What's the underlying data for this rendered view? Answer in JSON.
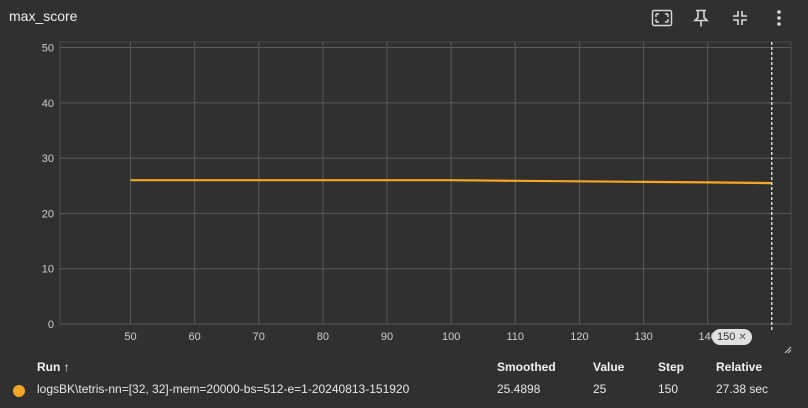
{
  "panel": {
    "title": "max_score"
  },
  "toolbar": {
    "fit_icon": "fit-domain-icon",
    "pin_icon": "pin-icon",
    "collapse_icon": "collapse-icon",
    "menu_icon": "more-vert-icon"
  },
  "chart_data": {
    "type": "line",
    "title": "max_score",
    "xlabel": "",
    "ylabel": "",
    "xlim": [
      39,
      153
    ],
    "ylim": [
      0,
      51
    ],
    "xticks": [
      50,
      60,
      70,
      80,
      90,
      100,
      110,
      120,
      130,
      140
    ],
    "yticks": [
      0,
      10,
      20,
      30,
      40,
      50
    ],
    "grid": true,
    "series": [
      {
        "name": "logsBK\\tetris-nn=[32, 32]-mem=20000-bs=512-e=1-20240813-151920",
        "color": "#f5a623",
        "x": [
          50,
          60,
          70,
          80,
          90,
          100,
          110,
          120,
          130,
          140,
          150
        ],
        "y": [
          26,
          26,
          26,
          26,
          26,
          26,
          25.9,
          25.8,
          25.7,
          25.6,
          25.4898
        ]
      }
    ],
    "hover_step": 150,
    "hover_label": "150"
  },
  "table": {
    "headers": {
      "run": "Run ↑",
      "smoothed": "Smoothed",
      "value": "Value",
      "step": "Step",
      "relative": "Relative"
    },
    "rows": [
      {
        "run": "logsBK\\tetris-nn=[32, 32]-mem=20000-bs=512-e=1-20240813-151920",
        "smoothed": "25.4898",
        "value": "25",
        "step": "150",
        "relative": "27.38 sec",
        "color": "#f5a623"
      }
    ]
  }
}
